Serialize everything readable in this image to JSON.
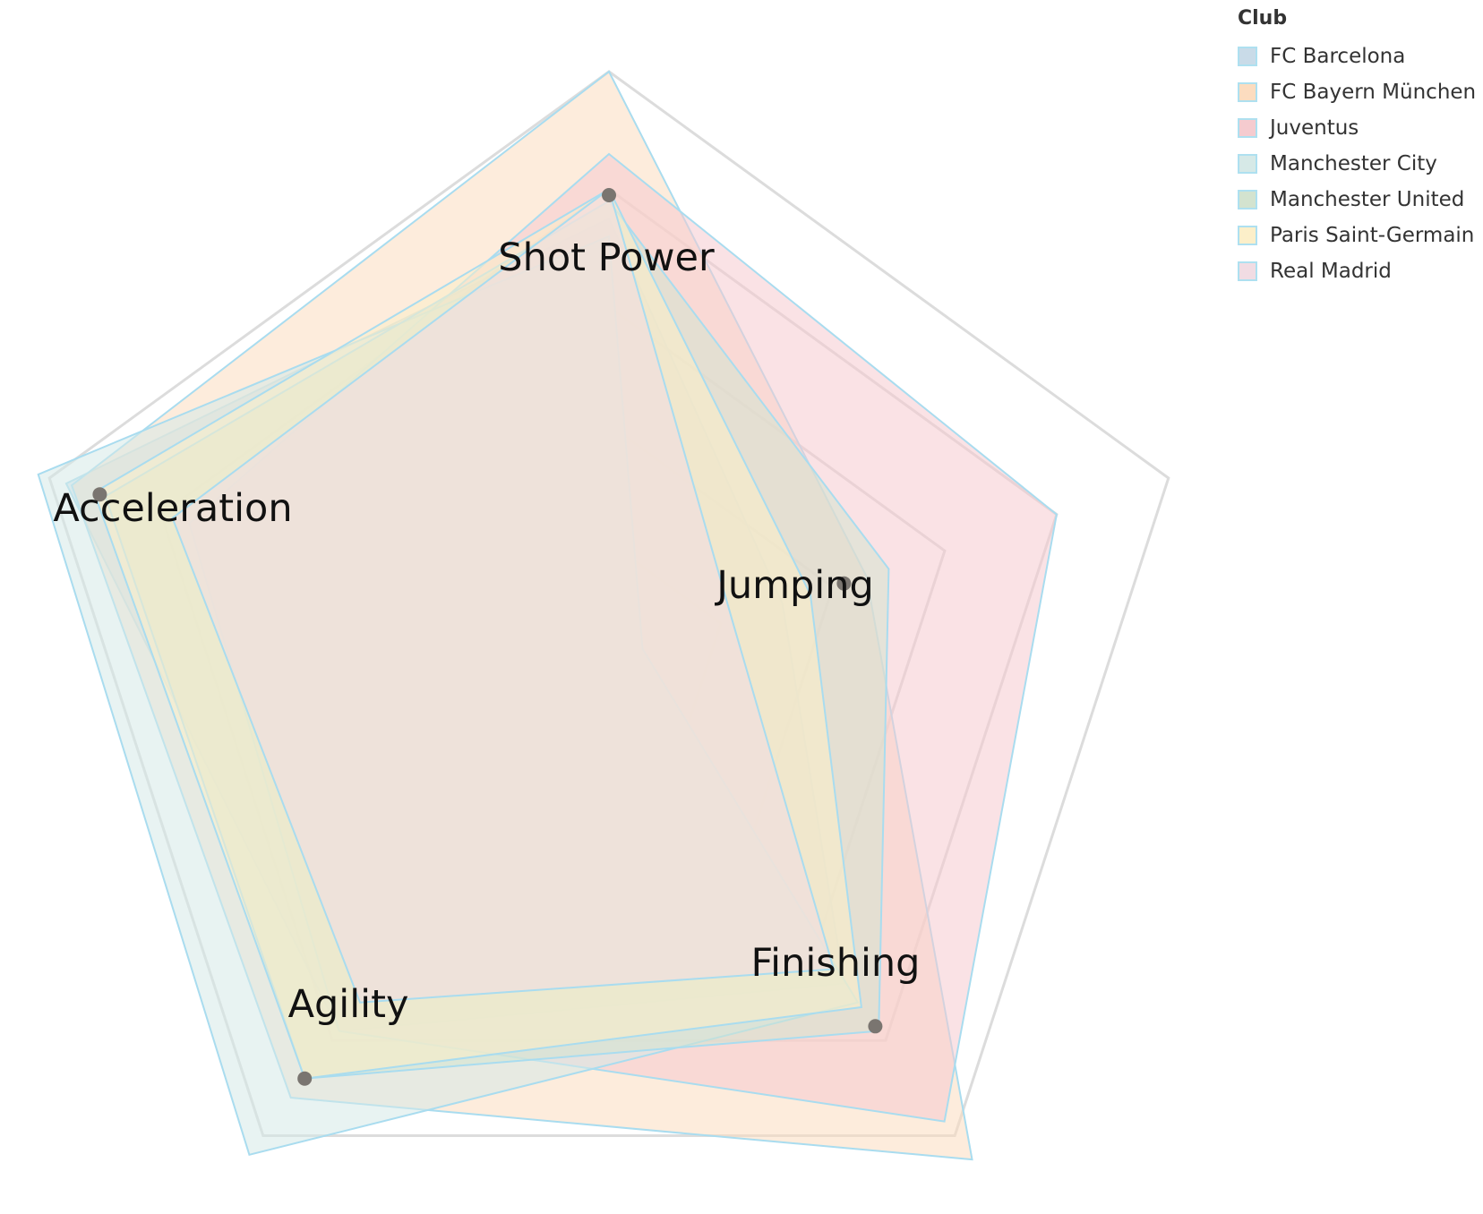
{
  "chart_data": {
    "type": "radar",
    "axes": [
      "Shot Power",
      "Jumping",
      "Finishing",
      "Agility",
      "Acceleration"
    ],
    "grid": true,
    "grid_levels": 5,
    "legend": {
      "title": "Club",
      "placement": "top-right"
    },
    "series": [
      {
        "name": "FC Barcelona",
        "color": "#c9dbe8",
        "values": [
          0.75,
          0.31,
          0.68,
          0.78,
          0.97
        ]
      },
      {
        "name": "FC Bayern München",
        "color": "#fcdcbf",
        "values": [
          1.0,
          0.46,
          1.05,
          0.92,
          0.96
        ]
      },
      {
        "name": "Juventus",
        "color": "#f5cbcf",
        "values": [
          0.86,
          0.8,
          0.97,
          0.78,
          0.75
        ]
      },
      {
        "name": "Manchester City",
        "color": "#d6e9e7",
        "values": [
          0.72,
          0.06,
          0.72,
          1.04,
          1.02
        ]
      },
      {
        "name": "Manchester United",
        "color": "#d3e3cf",
        "values": [
          0.78,
          0.5,
          0.78,
          0.88,
          0.9
        ]
      },
      {
        "name": "Paris Saint-Germain",
        "color": "#fcefc9",
        "values": [
          0.8,
          0.36,
          0.73,
          0.88,
          0.92
        ]
      },
      {
        "name": "Real Madrid",
        "color": "#f1dce3",
        "values": [
          0.8,
          0.22,
          0.65,
          0.72,
          0.78
        ]
      }
    ],
    "markers": [
      0.79,
      0.42,
      0.77,
      0.88,
      0.91
    ]
  }
}
